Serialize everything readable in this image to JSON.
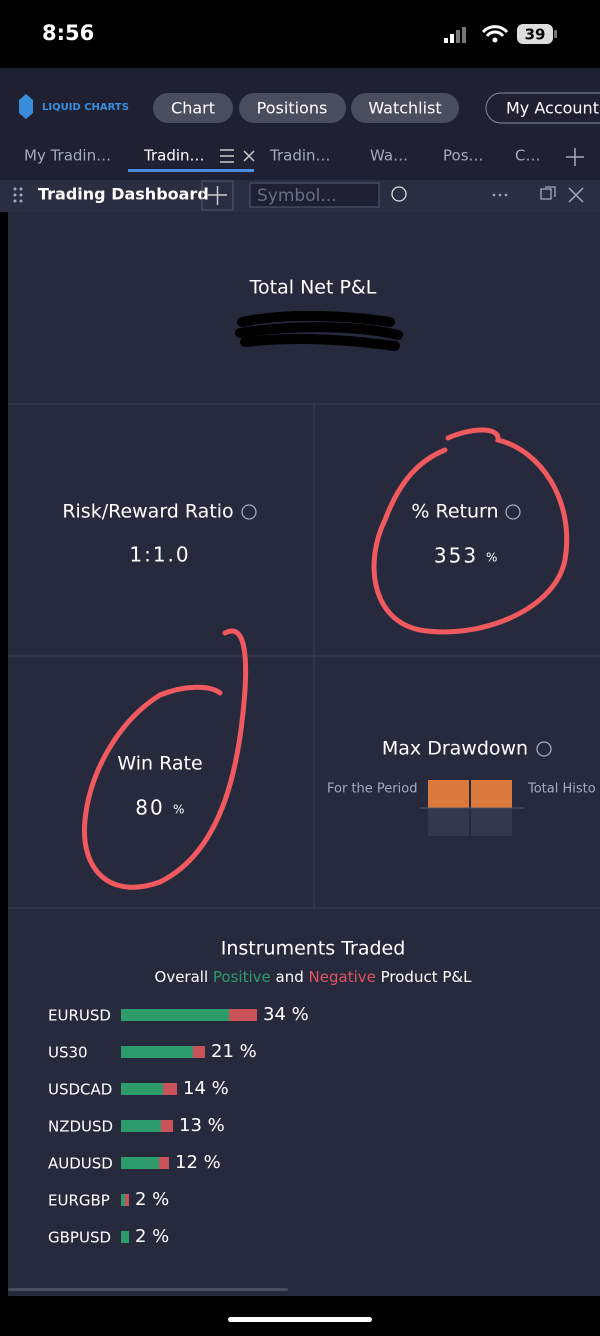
{
  "status_bar": {
    "time": "8:56",
    "battery": "39"
  },
  "nav": {
    "logo": "LIQUID CHARTS",
    "buttons": [
      "Chart",
      "Positions",
      "Watchlist",
      "My Account"
    ]
  },
  "tabs": [
    "My Tradin…",
    "Tradin…",
    "Tradin…",
    "Wa…",
    "Pos…",
    "C…"
  ],
  "panel": {
    "title": "Trading Dashboard",
    "symbol_placeholder": "Symbol..."
  },
  "total_net_pl": {
    "label": "Total Net P&L"
  },
  "risk_reward": {
    "label": "Risk/Reward Ratio",
    "value": "1:1.0"
  },
  "return": {
    "label": "% Return",
    "value": 353,
    "unit": "%"
  },
  "win_rate": {
    "label": "Win Rate",
    "value": 80,
    "unit": "%"
  },
  "max_drawdown": {
    "label": "Max Drawdown",
    "left_label": "For the Period",
    "right_label": "Total Histo"
  },
  "instruments": {
    "title": "Instruments Traded",
    "subtitle": [
      "Overall",
      "Positive",
      "and",
      "Negative",
      "Product P&L"
    ],
    "names": [
      "EURUSD",
      "US30",
      "USDCAD",
      "NZDUSD",
      "AUDUSD",
      "EURGBP",
      "GBPUSD"
    ],
    "values": [
      34,
      21,
      14,
      13,
      12,
      2,
      2
    ],
    "value_labels": [
      "34 %",
      "21 %",
      "14 %",
      "13 %",
      "12 %",
      "2 %",
      "2 %"
    ],
    "positive": [
      27,
      18,
      10.5,
      10,
      9.5,
      1,
      2
    ],
    "negative": [
      7,
      3,
      3.5,
      3,
      2.5,
      1,
      0
    ]
  }
}
